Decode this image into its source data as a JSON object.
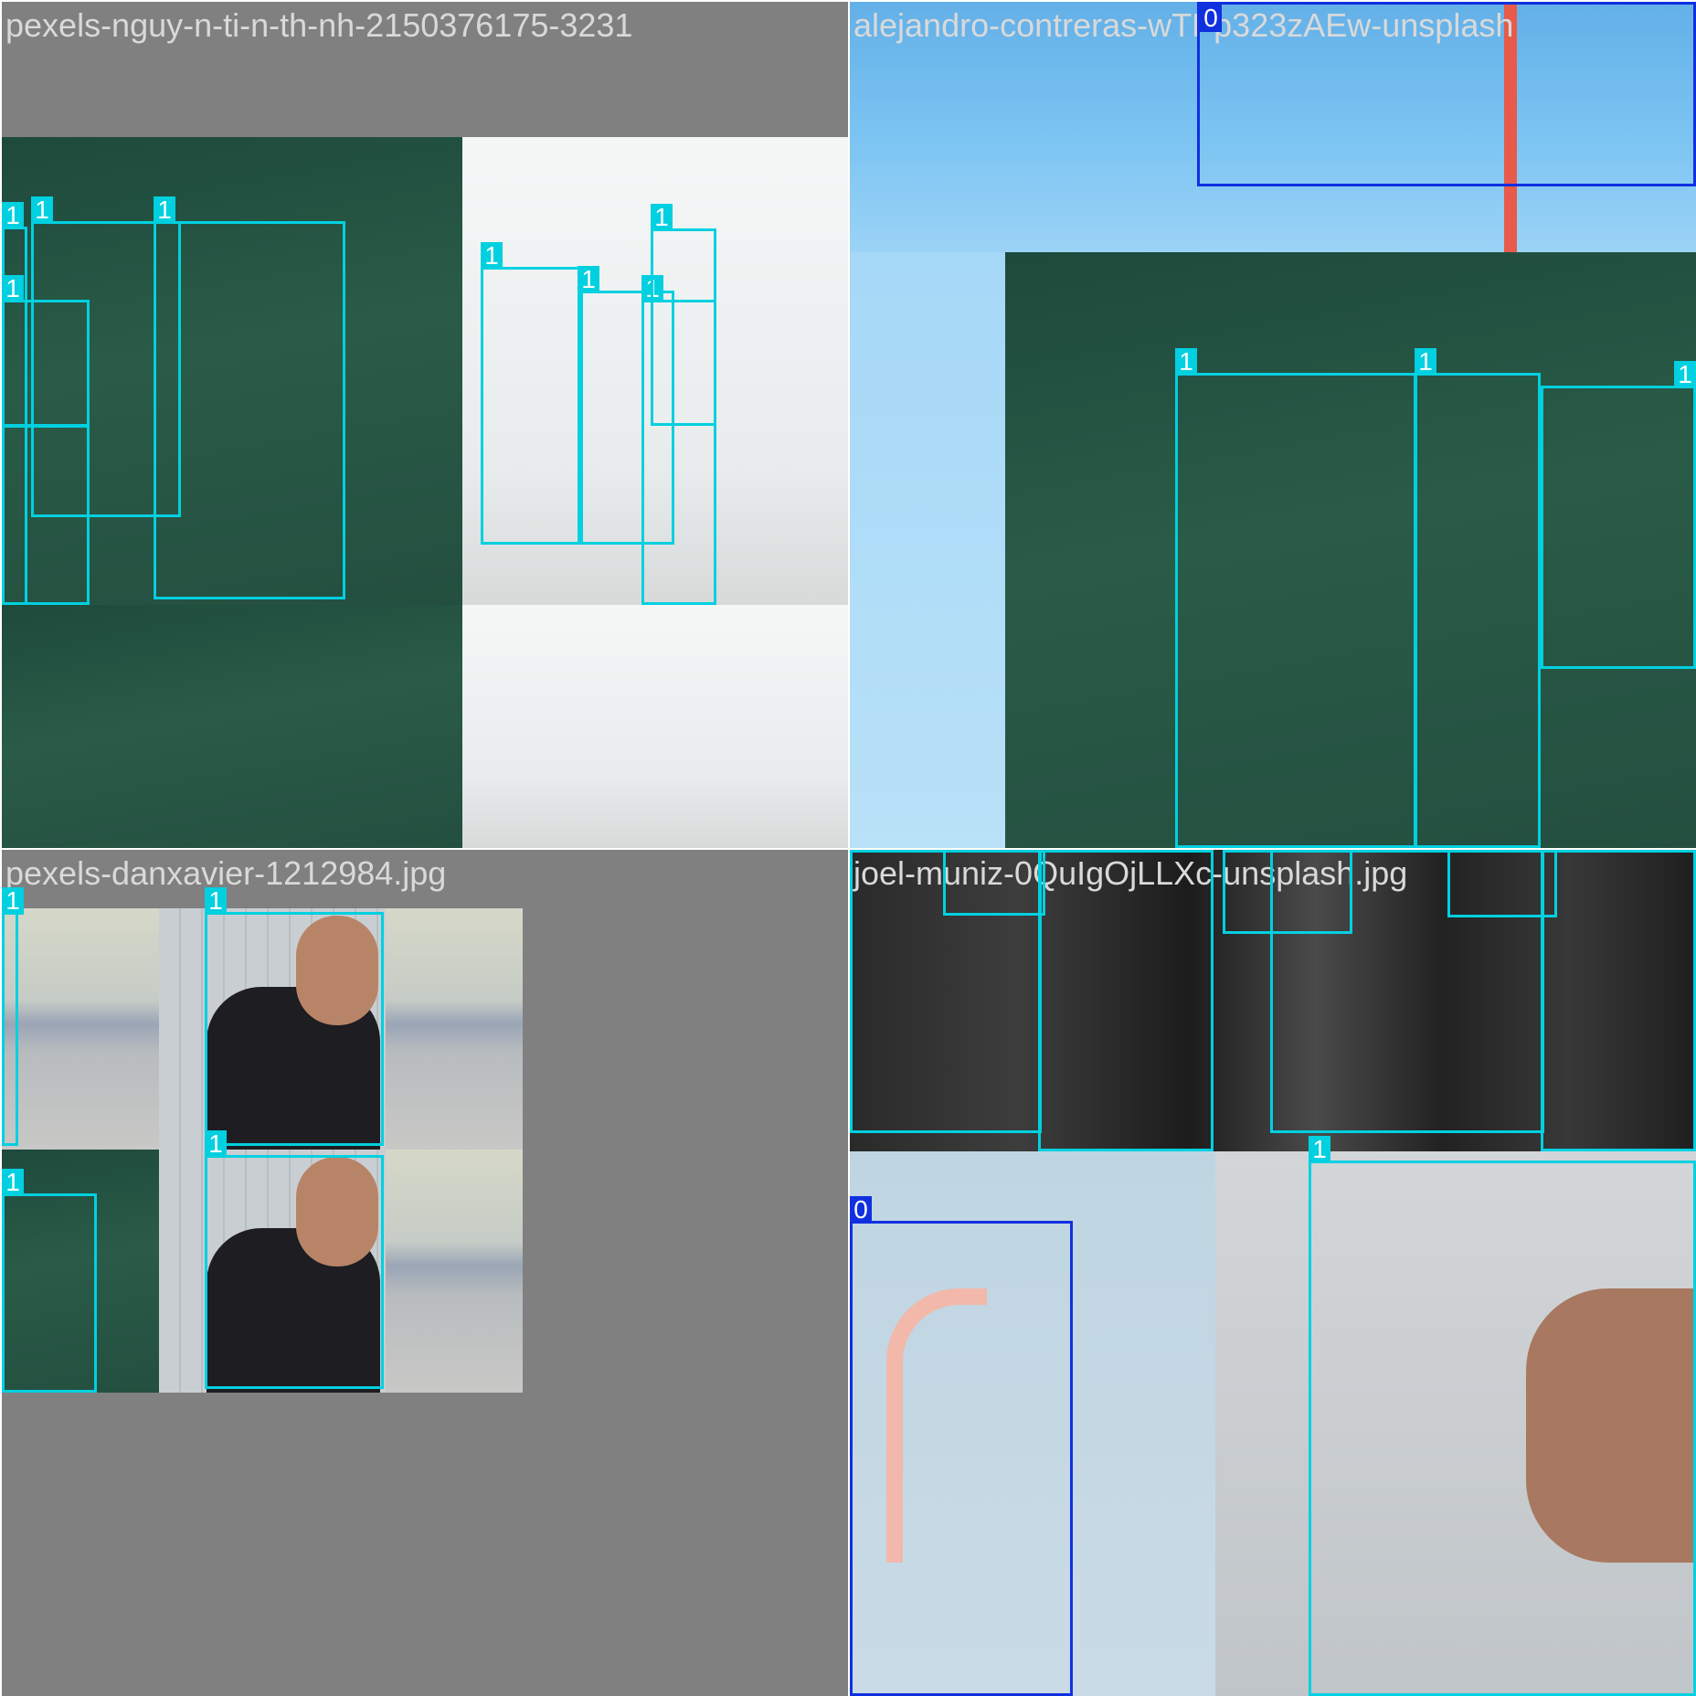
{
  "mosaic": {
    "tiles": [
      {
        "caption": "pexels-nguy-n-ti-n-th-nh-2150376175-3231"
      },
      {
        "caption": "alejandro-contreras-wTPp323zAEw-unsplash"
      },
      {
        "caption": "pexels-danxavier-1212984.jpg"
      },
      {
        "caption": "joel-muniz-0QuIgOjLLXc-unsplash.jpg"
      }
    ]
  },
  "labels": {
    "class0": "0",
    "class1": "1"
  },
  "colors": {
    "class0_box": "#1030e0",
    "class1_box": "#00d0e0",
    "padding": "#808080"
  }
}
